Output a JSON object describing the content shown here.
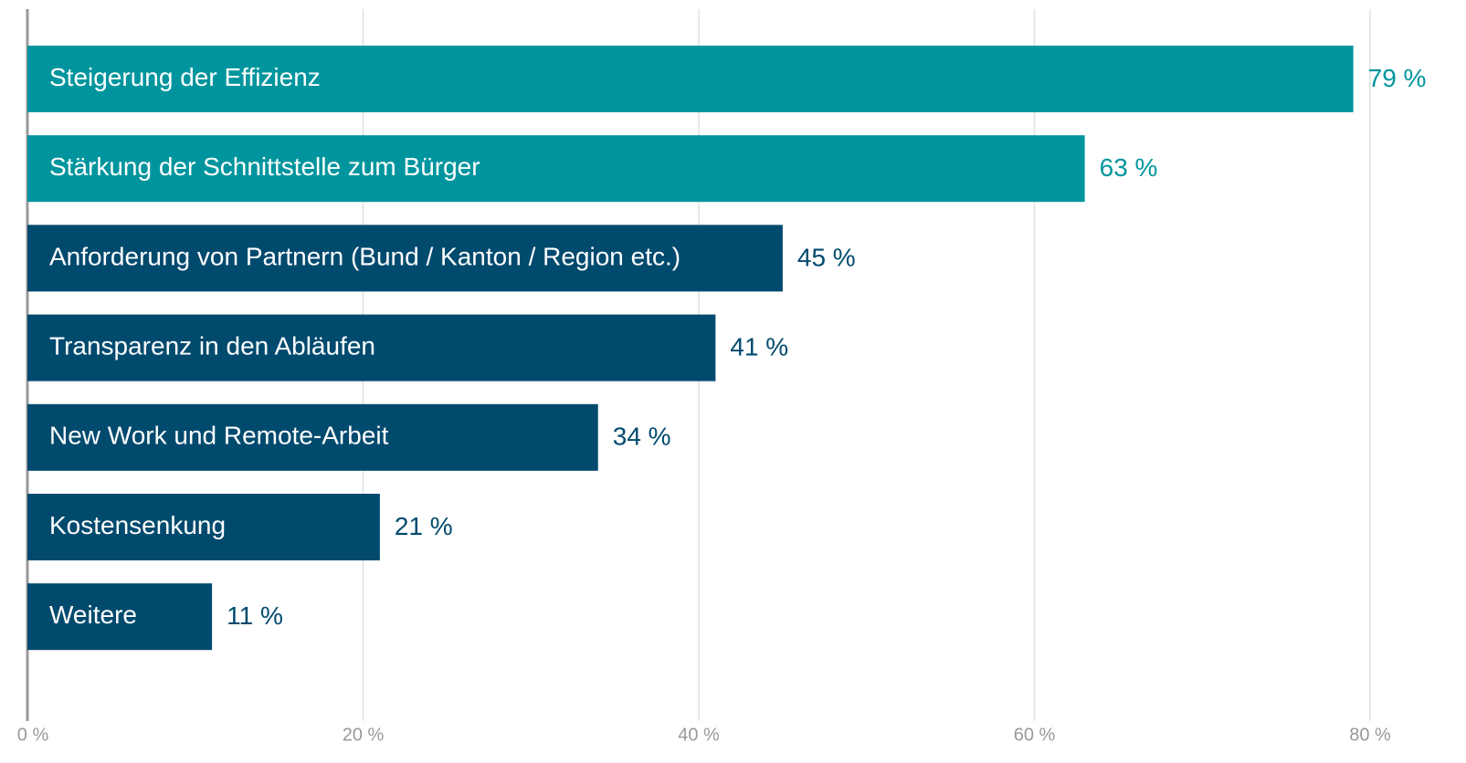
{
  "chart_data": {
    "type": "bar",
    "orientation": "horizontal",
    "categories": [
      "Steigerung der Effizienz",
      "Stärkung der Schnittstelle zum Bürger",
      "Anforderung von Partnern (Bund / Kanton / Region etc.)",
      "Transparenz in den Abläufen",
      "New Work und Remote-Arbeit",
      "Kostensenkung",
      "Weitere"
    ],
    "values": [
      79,
      63,
      45,
      41,
      34,
      21,
      11
    ],
    "value_labels": [
      "79 %",
      "63 %",
      "45 %",
      "41 %",
      "34 %",
      "21 %",
      "11 %"
    ],
    "colors": [
      "#00959e",
      "#00959e",
      "#004a6e",
      "#004a6e",
      "#004a6e",
      "#004a6e",
      "#004a6e"
    ],
    "xlim": [
      0,
      80
    ],
    "xticks": [
      {
        "value": 0,
        "label": "0 %"
      },
      {
        "value": 20,
        "label": "20 %"
      },
      {
        "value": 40,
        "label": "40 %"
      },
      {
        "value": 60,
        "label": "60 %"
      },
      {
        "value": 80,
        "label": "80 %"
      }
    ],
    "grid": true
  }
}
